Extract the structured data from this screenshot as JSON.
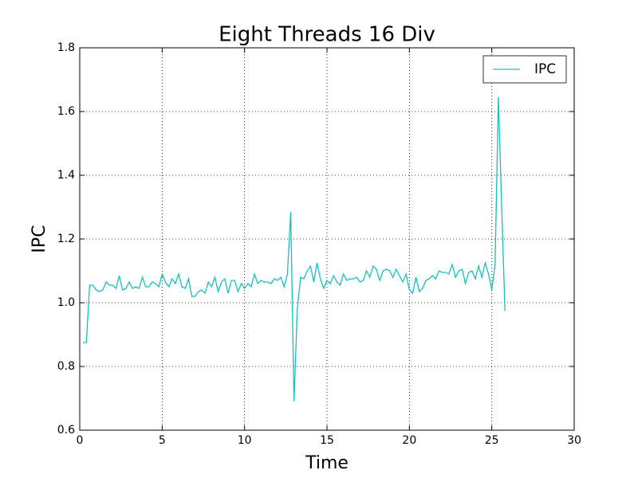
{
  "chart_data": {
    "type": "line",
    "title": "Eight Threads 16 Div",
    "x_label": "Time",
    "y_label": "IPC",
    "x": [
      0.2,
      0.4,
      0.6,
      0.8,
      1.0,
      1.2,
      1.4,
      1.6,
      1.8,
      2.0,
      2.2,
      2.4,
      2.6,
      2.8,
      3.0,
      3.2,
      3.4,
      3.6,
      3.8,
      4.0,
      4.2,
      4.4,
      4.6,
      4.8,
      5.0,
      5.2,
      5.4,
      5.6,
      5.8,
      6.0,
      6.2,
      6.4,
      6.6,
      6.8,
      7.0,
      7.2,
      7.4,
      7.6,
      7.8,
      8.0,
      8.2,
      8.4,
      8.6,
      8.8,
      9.0,
      9.2,
      9.4,
      9.6,
      9.8,
      10.0,
      10.2,
      10.4,
      10.6,
      10.8,
      11.0,
      11.2,
      11.4,
      11.6,
      11.8,
      12.0,
      12.2,
      12.4,
      12.6,
      12.8,
      13.0,
      13.2,
      13.4,
      13.6,
      13.8,
      14.0,
      14.2,
      14.4,
      14.6,
      14.8,
      15.0,
      15.2,
      15.4,
      15.6,
      15.8,
      16.0,
      16.2,
      16.4,
      16.6,
      16.8,
      17.0,
      17.2,
      17.4,
      17.6,
      17.8,
      18.0,
      18.2,
      18.4,
      18.6,
      18.8,
      19.0,
      19.2,
      19.4,
      19.6,
      19.8,
      20.0,
      20.2,
      20.4,
      20.6,
      20.8,
      21.0,
      21.2,
      21.4,
      21.6,
      21.8,
      22.0,
      22.2,
      22.4,
      22.6,
      22.8,
      23.0,
      23.2,
      23.4,
      23.6,
      23.8,
      24.0,
      24.2,
      24.4,
      24.6,
      24.8,
      25.0,
      25.2,
      25.4,
      25.6,
      25.8
    ],
    "series": [
      {
        "name": "IPC",
        "color": "#17bfbf",
        "values": [
          0.875,
          0.875,
          1.055,
          1.055,
          1.04,
          1.035,
          1.04,
          1.065,
          1.055,
          1.055,
          1.045,
          1.085,
          1.04,
          1.045,
          1.065,
          1.045,
          1.05,
          1.045,
          1.08,
          1.05,
          1.05,
          1.065,
          1.06,
          1.05,
          1.09,
          1.065,
          1.05,
          1.075,
          1.06,
          1.09,
          1.05,
          1.045,
          1.075,
          1.02,
          1.02,
          1.035,
          1.04,
          1.03,
          1.065,
          1.05,
          1.08,
          1.035,
          1.065,
          1.075,
          1.03,
          1.07,
          1.07,
          1.035,
          1.06,
          1.045,
          1.06,
          1.05,
          1.09,
          1.06,
          1.07,
          1.065,
          1.065,
          1.06,
          1.075,
          1.07,
          1.08,
          1.05,
          1.09,
          1.285,
          0.69,
          0.98,
          1.08,
          1.075,
          1.1,
          1.115,
          1.065,
          1.125,
          1.075,
          1.045,
          1.07,
          1.06,
          1.085,
          1.065,
          1.055,
          1.09,
          1.07,
          1.075,
          1.075,
          1.08,
          1.065,
          1.07,
          1.1,
          1.08,
          1.115,
          1.105,
          1.07,
          1.1,
          1.105,
          1.1,
          1.08,
          1.105,
          1.085,
          1.065,
          1.09,
          1.04,
          1.03,
          1.08,
          1.035,
          1.045,
          1.07,
          1.075,
          1.085,
          1.075,
          1.1,
          1.095,
          1.095,
          1.09,
          1.12,
          1.08,
          1.1,
          1.105,
          1.06,
          1.095,
          1.1,
          1.075,
          1.115,
          1.08,
          1.125,
          1.09,
          1.04,
          1.12,
          1.645,
          1.3,
          0.975
        ]
      }
    ],
    "xlim": [
      0,
      30
    ],
    "xticks": [
      0,
      5,
      10,
      15,
      20,
      25,
      30
    ],
    "ylim": [
      0.6,
      1.8
    ],
    "yticks": [
      {
        "value": 0.6,
        "label": "0.6"
      },
      {
        "value": 0.8,
        "label": "0.8"
      },
      {
        "value": 1.0,
        "label": "1.0"
      },
      {
        "value": 1.2,
        "label": "1.2"
      },
      {
        "value": 1.4,
        "label": "1.4"
      },
      {
        "value": 1.6,
        "label": "1.6"
      },
      {
        "value": 1.8,
        "label": "1.8"
      }
    ],
    "grid": true,
    "legend": "upper right"
  }
}
